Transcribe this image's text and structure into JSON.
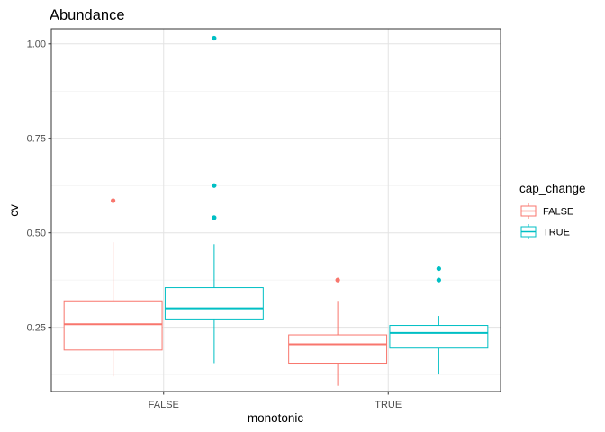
{
  "chart_data": {
    "type": "boxplot",
    "title": "Abundance",
    "xlabel": "monotonic",
    "ylabel": "cv",
    "categories": [
      "FALSE",
      "TRUE"
    ],
    "ylim": [
      0.08,
      1.04
    ],
    "yticks": [
      0.25,
      0.5,
      0.75,
      1.0
    ],
    "ytick_labels": [
      "0.25",
      "0.50",
      "0.75",
      "1.00"
    ],
    "grid": true,
    "legend": {
      "title": "cap_change",
      "position": "right",
      "entries": [
        "FALSE",
        "TRUE"
      ]
    },
    "series": [
      {
        "name": "FALSE",
        "color": "#F8766D",
        "boxes": [
          {
            "category": "FALSE",
            "whisker_low": 0.12,
            "q1": 0.19,
            "median": 0.258,
            "q3": 0.32,
            "whisker_high": 0.475,
            "outliers": [
              0.585
            ]
          },
          {
            "category": "TRUE",
            "whisker_low": 0.095,
            "q1": 0.155,
            "median": 0.205,
            "q3": 0.23,
            "whisker_high": 0.32,
            "outliers": [
              0.375
            ]
          }
        ]
      },
      {
        "name": "TRUE",
        "color": "#00BFC4",
        "boxes": [
          {
            "category": "FALSE",
            "whisker_low": 0.155,
            "q1": 0.272,
            "median": 0.3,
            "q3": 0.355,
            "whisker_high": 0.47,
            "outliers": [
              0.54,
              0.625,
              1.015
            ]
          },
          {
            "category": "TRUE",
            "whisker_low": 0.125,
            "q1": 0.195,
            "median": 0.235,
            "q3": 0.255,
            "whisker_high": 0.28,
            "outliers": [
              0.375,
              0.405
            ]
          }
        ]
      }
    ]
  }
}
